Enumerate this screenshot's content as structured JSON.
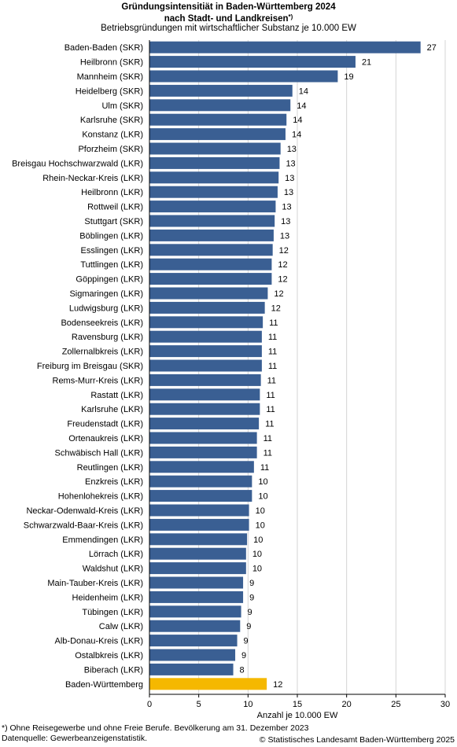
{
  "title_line1": "Gründungsintensitiät in Baden-Württemberg 2024",
  "title_line2": "nach Stadt- und Landkreisen",
  "title_marker": "*)",
  "subtitle": "Betriebsgründungen mit wirtschaftlicher Substanz je 10.000 EW",
  "footnote": "*) Ohne Reisegewerbe und ohne Freie Berufe. Bevölkerung am 31. Dezember 2023",
  "source": "Datenquelle: Gewerbeanzeigenstatistik.",
  "copyright": "© Statistisches Landesamt Baden-Württemberg 2025",
  "colors": {
    "bar": "#3a5f93",
    "highlight": "#f5b800",
    "grid": "#d4d4d4",
    "axis": "#000000"
  },
  "chart_data": {
    "type": "bar",
    "orientation": "horizontal",
    "title": "Gründungsintensitiät in Baden-Württemberg 2024 nach Stadt- und Landkreisen",
    "subtitle": "Betriebsgründungen mit wirtschaftlicher Substanz je 10.000 EW",
    "xlabel": "Anzahl je 10.000 EW",
    "xlim": [
      0,
      30
    ],
    "xticks": [
      0,
      5,
      10,
      15,
      20,
      25,
      30
    ],
    "grid": true,
    "highlight_category": "Baden-Württemberg",
    "categories": [
      "Baden-Baden (SKR)",
      "Heilbronn (SKR)",
      "Mannheim (SKR)",
      "Heidelberg (SKR)",
      "Ulm (SKR)",
      "Karlsruhe (SKR)",
      "Konstanz (LKR)",
      "Pforzheim (SKR)",
      "Breisgau Hochschwarzwald (LKR)",
      "Rhein-Neckar-Kreis (LKR)",
      "Heilbronn (LKR)",
      "Rottweil (LKR)",
      "Stuttgart (SKR)",
      "Böblingen (LKR)",
      "Esslingen (LKR)",
      "Tuttlingen (LKR)",
      "Göppingen (LKR)",
      "Sigmaringen (LKR)",
      "Ludwigsburg (LKR)",
      "Bodenseekreis (LKR)",
      "Ravensburg (LKR)",
      "Zollernalbkreis (LKR)",
      "Freiburg im Breisgau (SKR)",
      "Rems-Murr-Kreis (LKR)",
      "Rastatt (LKR)",
      "Karlsruhe (LKR)",
      "Freudenstadt (LKR)",
      "Ortenaukreis (LKR)",
      "Schwäbisch Hall (LKR)",
      "Reutlingen (LKR)",
      "Enzkreis (LKR)",
      "Hohenlohekreis (LKR)",
      "Neckar-Odenwald-Kreis (LKR)",
      "Schwarzwald-Baar-Kreis (LKR)",
      "Emmendingen (LKR)",
      "Lörrach (LKR)",
      "Waldshut (LKR)",
      "Main-Tauber-Kreis (LKR)",
      "Heidenheim (LKR)",
      "Tübingen (LKR)",
      "Calw (LKR)",
      "Alb-Donau-Kreis (LKR)",
      "Ostalbkreis (LKR)",
      "Biberach (LKR)",
      "Baden-Württemberg"
    ],
    "values": [
      27.5,
      20.9,
      19.1,
      14.5,
      14.3,
      13.9,
      13.8,
      13.3,
      13.2,
      13.1,
      13.0,
      12.8,
      12.7,
      12.6,
      12.5,
      12.4,
      12.4,
      12.0,
      11.7,
      11.5,
      11.4,
      11.4,
      11.4,
      11.3,
      11.2,
      11.2,
      11.1,
      10.9,
      10.9,
      10.6,
      10.4,
      10.4,
      10.1,
      10.1,
      9.9,
      9.8,
      9.8,
      9.5,
      9.5,
      9.3,
      9.2,
      8.9,
      8.7,
      8.5,
      11.9
    ],
    "value_labels": [
      "27",
      "21",
      "19",
      "14",
      "14",
      "14",
      "14",
      "13",
      "13",
      "13",
      "13",
      "13",
      "13",
      "13",
      "12",
      "12",
      "12",
      "12",
      "12",
      "11",
      "11",
      "11",
      "11",
      "11",
      "11",
      "11",
      "11",
      "11",
      "11",
      "11",
      "10",
      "10",
      "10",
      "10",
      "10",
      "10",
      "10",
      "9",
      "9",
      "9",
      "9",
      "9",
      "9",
      "8",
      "12"
    ]
  }
}
